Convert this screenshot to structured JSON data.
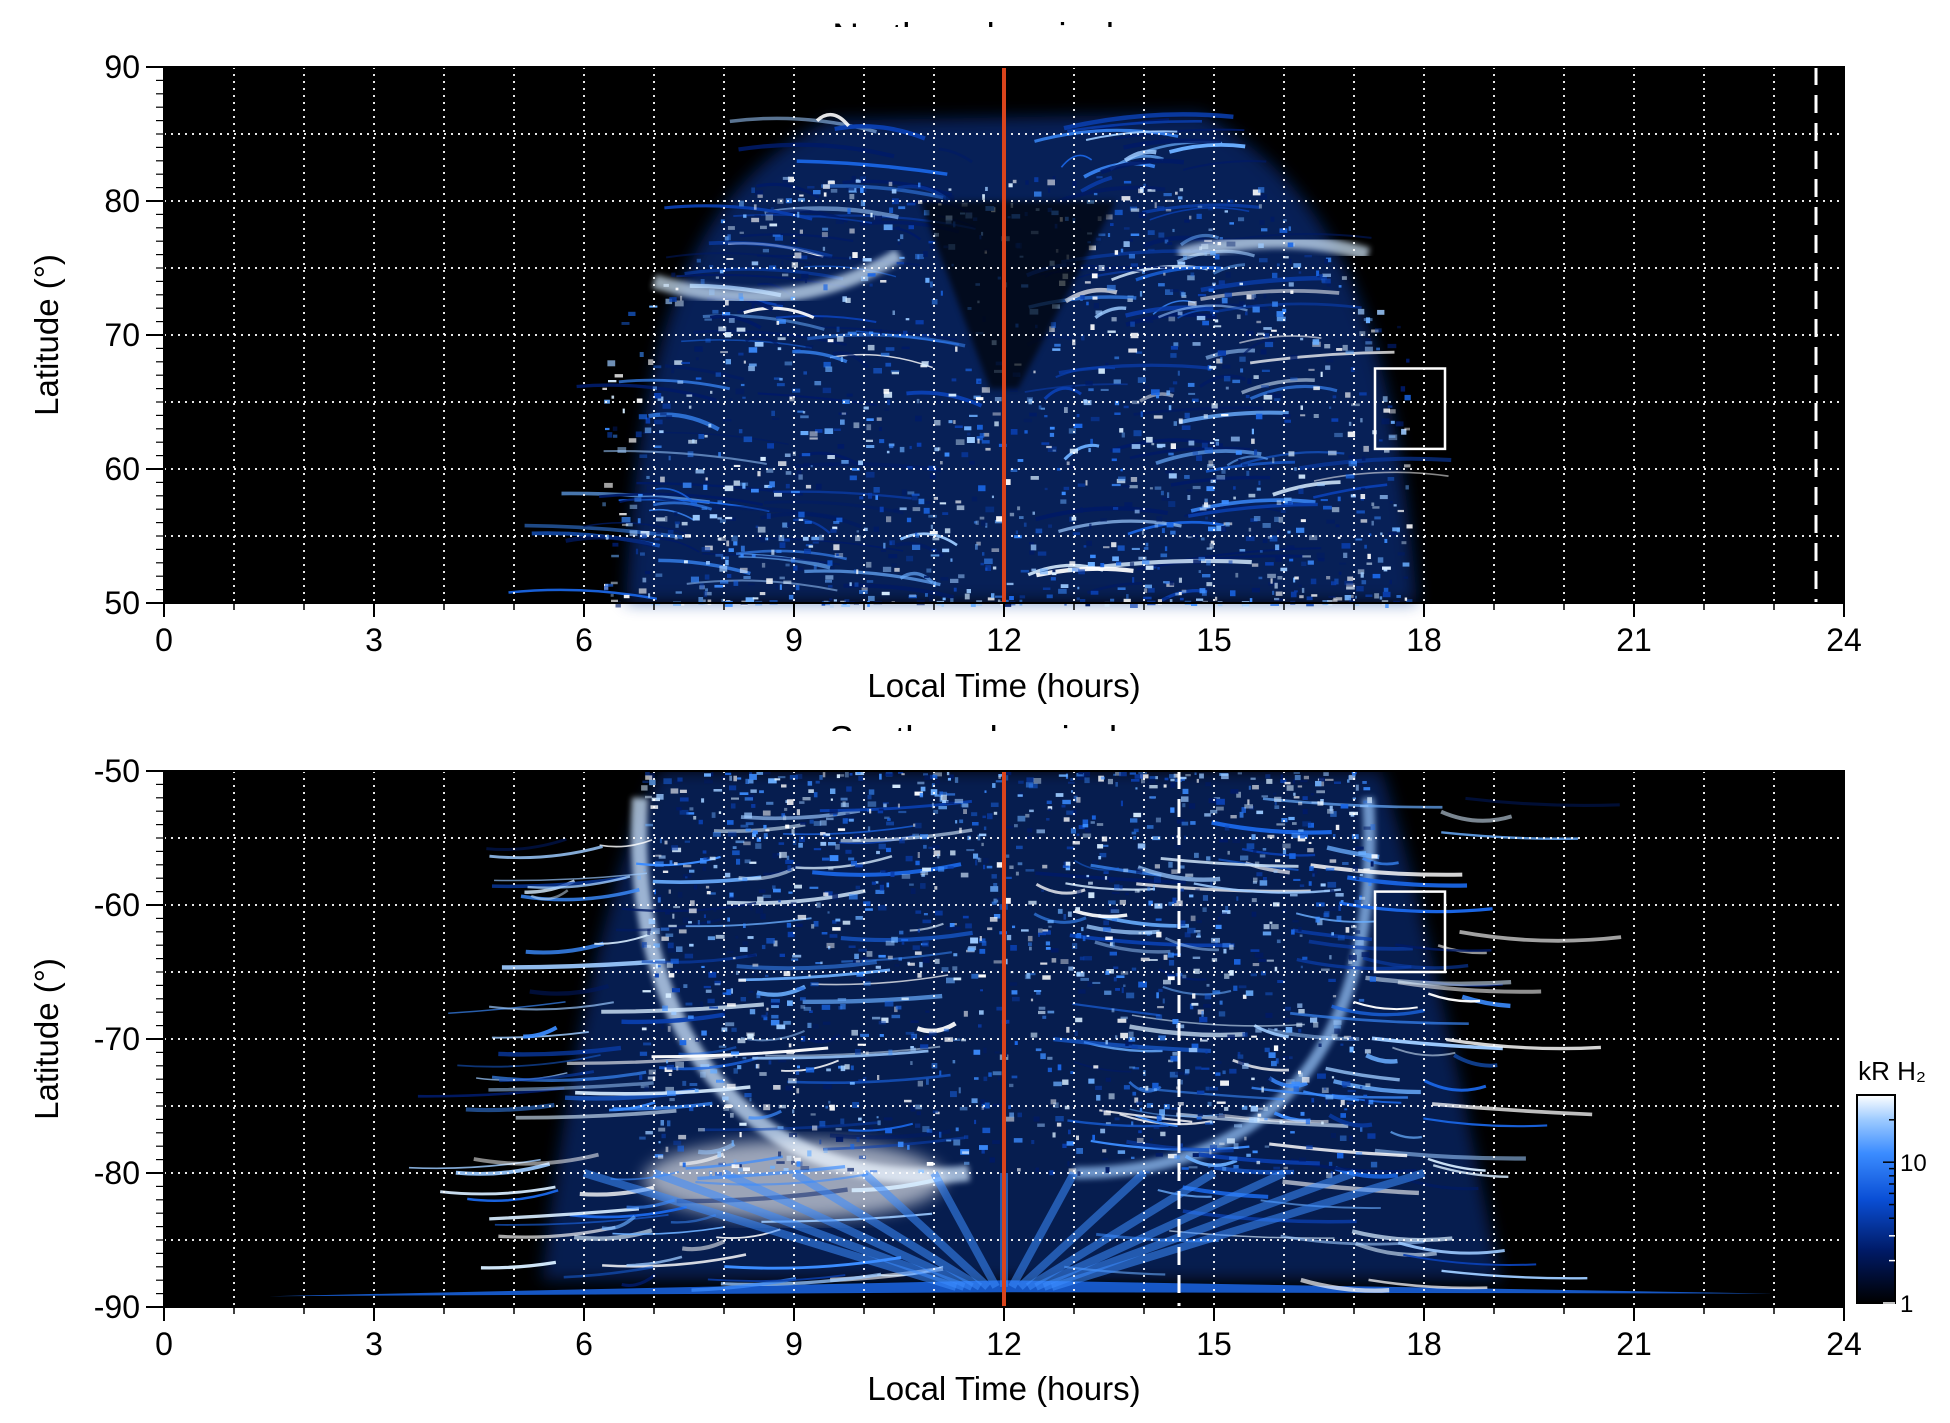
{
  "chart_data": [
    {
      "type": "heatmap",
      "title": "Northern hemisphere",
      "xlabel": "Local Time (hours)",
      "ylabel": "Latitude (°)",
      "xlim": [
        0,
        24
      ],
      "ylim": [
        50,
        90
      ],
      "x_ticks": [
        "0",
        "3",
        "6",
        "9",
        "12",
        "15",
        "18",
        "21",
        "24"
      ],
      "y_ticks": [
        "50",
        "60",
        "70",
        "80",
        "90"
      ],
      "grid": true,
      "background": "#000000",
      "emission_extent": {
        "local_time": [
          6.5,
          18.0
        ],
        "latitude": [
          50,
          87
        ]
      },
      "reference_line": {
        "local_time": 12,
        "color": "#d9441c"
      },
      "box": {
        "local_time": [
          17.3,
          18.3
        ],
        "latitude": [
          61.5,
          67.5
        ],
        "color": "#ffffff"
      },
      "dashed_line": {
        "local_time": 23.6,
        "color": "#ffffff"
      }
    },
    {
      "type": "heatmap",
      "title": "Southern hemisphere",
      "xlabel": "Local Time (hours)",
      "ylabel": "Latitude (°)",
      "xlim": [
        0,
        24
      ],
      "ylim": [
        -90,
        -50
      ],
      "x_ticks": [
        "0",
        "3",
        "6",
        "9",
        "12",
        "15",
        "18",
        "21",
        "24"
      ],
      "y_ticks": [
        "-50",
        "-60",
        "-70",
        "-80",
        "-90"
      ],
      "grid": true,
      "background": "#000000",
      "emission_extent": {
        "local_time": [
          1.5,
          23.0
        ],
        "latitude": [
          -90,
          -50
        ]
      },
      "reference_line": {
        "local_time": 12,
        "color": "#d9441c"
      },
      "box": {
        "local_time": [
          17.3,
          18.3
        ],
        "latitude": [
          -65,
          -59
        ],
        "color": "#ffffff"
      },
      "dashed_line": {
        "local_time": 14.5,
        "color": "#ffffff"
      }
    }
  ],
  "colorbar": {
    "label": "kR H₂",
    "tick_labels": [
      "10",
      "1"
    ],
    "range": [
      1,
      30
    ],
    "scale": "log",
    "colors": [
      "#000000",
      "#001a66",
      "#0a4fd6",
      "#3b8cff",
      "#9ccaff",
      "#ffffff"
    ]
  }
}
